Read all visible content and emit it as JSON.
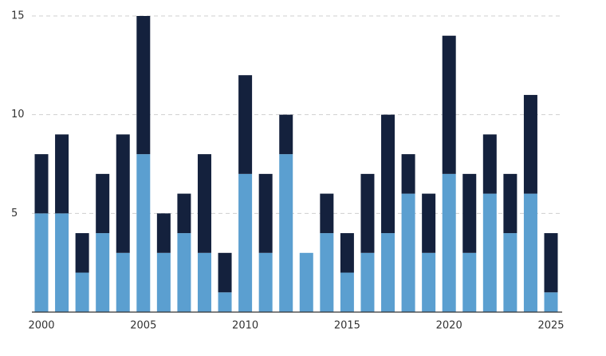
{
  "chart_data": {
    "type": "stacked-bar",
    "categories": [
      "2000",
      null,
      null,
      null,
      null,
      "2005",
      null,
      null,
      null,
      null,
      "2010",
      null,
      null,
      null,
      null,
      "2015",
      null,
      null,
      null,
      null,
      "2020",
      null,
      null,
      null,
      null,
      "2025"
    ],
    "series": [
      {
        "color": "#5b9fd0",
        "values": [
          5,
          5,
          2,
          4,
          3,
          8,
          3,
          4,
          3,
          1,
          7,
          3,
          8,
          3,
          4,
          2,
          3,
          4,
          6,
          3,
          7,
          3,
          6,
          4,
          6,
          1
        ]
      },
      {
        "color": "#14213d",
        "values": [
          3,
          4,
          2,
          3,
          6,
          7,
          2,
          2,
          5,
          2,
          5,
          4,
          2,
          0,
          2,
          2,
          4,
          6,
          2,
          3,
          7,
          4,
          3,
          3,
          5,
          3
        ]
      }
    ],
    "ylim": [
      0,
      15
    ],
    "yticks": [
      5,
      10,
      15
    ],
    "grid": true
  }
}
